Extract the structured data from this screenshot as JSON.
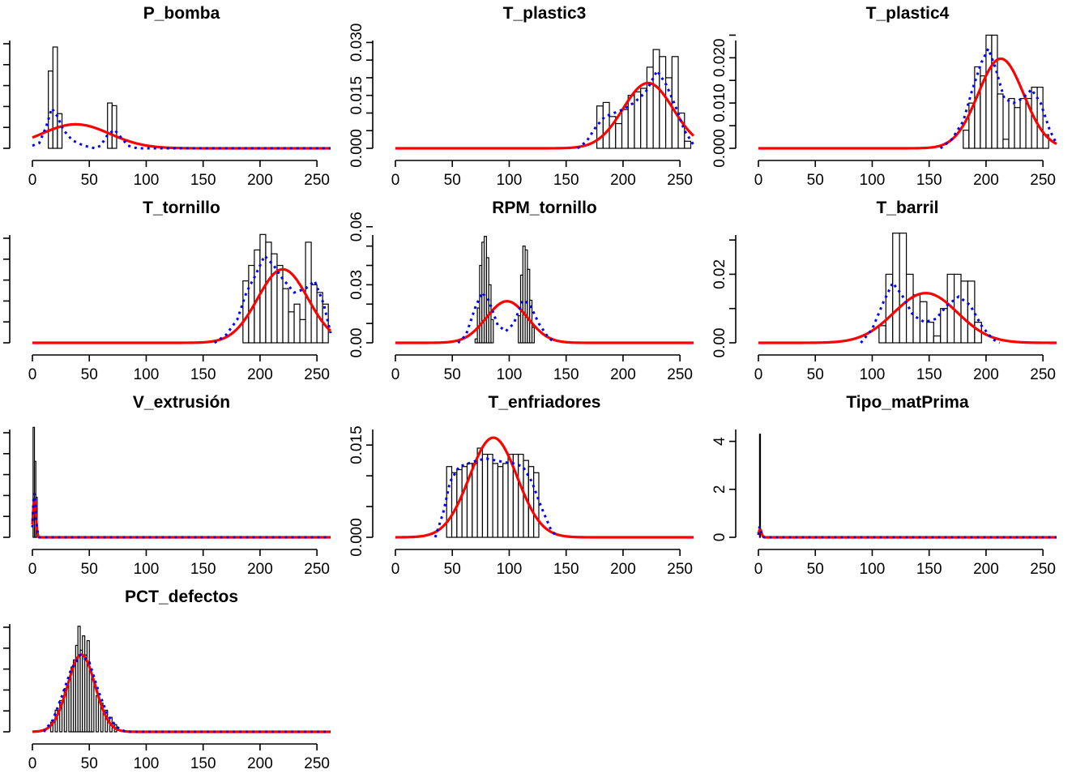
{
  "colors": {
    "bars": "#000000",
    "normal_curve": "#ff0000",
    "kernel_density": "#0000ff"
  },
  "chart_data": [
    {
      "type": "histogram",
      "title": "P_bomba",
      "xlim": [
        0,
        262
      ],
      "ylim": [
        0,
        0.45
      ],
      "xticks": [
        0,
        50,
        100,
        150,
        200,
        250
      ],
      "yticks": [],
      "ytick_labels": [],
      "bar_width": 4,
      "bars": [
        [
          14,
          0.29
        ],
        [
          18,
          0.38
        ],
        [
          22,
          0.13
        ],
        [
          66,
          0.17
        ],
        [
          70,
          0.16
        ]
      ],
      "normal": {
        "mean": 38,
        "sd": 30,
        "peak": 0.09
      },
      "kernel": [
        [
          0,
          0.01
        ],
        [
          6,
          0.02
        ],
        [
          12,
          0.08
        ],
        [
          17,
          0.15
        ],
        [
          22,
          0.12
        ],
        [
          27,
          0.07
        ],
        [
          35,
          0.03
        ],
        [
          45,
          0.01
        ],
        [
          55,
          0.0
        ],
        [
          60,
          0.01
        ],
        [
          66,
          0.05
        ],
        [
          72,
          0.07
        ],
        [
          78,
          0.04
        ],
        [
          84,
          0.01
        ],
        [
          92,
          0.0
        ],
        [
          262,
          0.0
        ]
      ]
    },
    {
      "type": "histogram",
      "title": "T_plastic3",
      "xlim": [
        0,
        262
      ],
      "ylim": [
        0,
        0.034
      ],
      "xticks": [
        0,
        50,
        100,
        150,
        200,
        250
      ],
      "yticks": [
        0,
        0.005,
        0.01,
        0.015,
        0.02,
        0.025,
        0.03
      ],
      "ytick_labels": [
        "0.000",
        "",
        "",
        "0.015",
        "",
        "",
        "0.030"
      ],
      "bar_width": 5.5,
      "bars": [
        [
          177,
          0.012
        ],
        [
          182.5,
          0.013
        ],
        [
          188,
          0.009
        ],
        [
          193.5,
          0.007
        ],
        [
          199,
          0.011
        ],
        [
          204.5,
          0.015
        ],
        [
          210,
          0.016
        ],
        [
          215.5,
          0.017
        ],
        [
          221,
          0.023
        ],
        [
          226.5,
          0.028
        ],
        [
          232,
          0.026
        ],
        [
          237.5,
          0.02
        ],
        [
          243,
          0.026
        ],
        [
          248.5,
          0.01
        ],
        [
          254,
          0.002
        ]
      ],
      "normal": {
        "mean": 222,
        "sd": 22,
        "peak": 0.0185
      },
      "kernel": [
        [
          160,
          0.0
        ],
        [
          168,
          0.002
        ],
        [
          176,
          0.006
        ],
        [
          184,
          0.009
        ],
        [
          192,
          0.01
        ],
        [
          200,
          0.011
        ],
        [
          210,
          0.013
        ],
        [
          220,
          0.016
        ],
        [
          230,
          0.022
        ],
        [
          238,
          0.018
        ],
        [
          246,
          0.012
        ],
        [
          254,
          0.005
        ],
        [
          262,
          0.001
        ]
      ]
    },
    {
      "type": "histogram",
      "title": "T_plastic4",
      "xlim": [
        0,
        262
      ],
      "ylim": [
        0,
        0.0265
      ],
      "xticks": [
        0,
        50,
        100,
        150,
        200,
        250
      ],
      "yticks": [
        0,
        0.005,
        0.01,
        0.015,
        0.02,
        0.025
      ],
      "ytick_labels": [
        "0.000",
        "",
        "0.010",
        "",
        "0.020",
        ""
      ],
      "bar_width": 5,
      "bars": [
        [
          180,
          0.004
        ],
        [
          185,
          0.01
        ],
        [
          190,
          0.018
        ],
        [
          195,
          0.016
        ],
        [
          200,
          0.025
        ],
        [
          205,
          0.025
        ],
        [
          210,
          0.012
        ],
        [
          215,
          0.002
        ],
        [
          220,
          0.011
        ],
        [
          225,
          0.009
        ],
        [
          230,
          0.011
        ],
        [
          235,
          0.011
        ],
        [
          240,
          0.0135
        ],
        [
          245,
          0.0135
        ],
        [
          250,
          0.003
        ]
      ],
      "normal": {
        "mean": 213,
        "sd": 20,
        "peak": 0.0198
      },
      "kernel": [
        [
          160,
          0.0
        ],
        [
          170,
          0.002
        ],
        [
          180,
          0.006
        ],
        [
          188,
          0.013
        ],
        [
          196,
          0.019
        ],
        [
          202,
          0.022
        ],
        [
          208,
          0.018
        ],
        [
          216,
          0.011
        ],
        [
          224,
          0.01
        ],
        [
          232,
          0.011
        ],
        [
          240,
          0.013
        ],
        [
          248,
          0.01
        ],
        [
          256,
          0.004
        ],
        [
          262,
          0.001
        ]
      ]
    },
    {
      "type": "histogram",
      "title": "T_tornillo",
      "xlim": [
        0,
        262
      ],
      "ylim": [
        0,
        0.062
      ],
      "xticks": [
        0,
        50,
        100,
        150,
        200,
        250
      ],
      "yticks": [],
      "ytick_labels": [],
      "bar_width": 5,
      "bars": [
        [
          185,
          0.032
        ],
        [
          190,
          0.04
        ],
        [
          195,
          0.048
        ],
        [
          200,
          0.056
        ],
        [
          205,
          0.052
        ],
        [
          210,
          0.046
        ],
        [
          215,
          0.04
        ],
        [
          220,
          0.028
        ],
        [
          225,
          0.016
        ],
        [
          230,
          0.02
        ],
        [
          235,
          0.012
        ],
        [
          240,
          0.052
        ],
        [
          245,
          0.03
        ],
        [
          250,
          0.026
        ],
        [
          255,
          0.02
        ]
      ],
      "normal": {
        "mean": 220,
        "sd": 22,
        "peak": 0.038
      },
      "kernel": [
        [
          160,
          0.0
        ],
        [
          170,
          0.004
        ],
        [
          180,
          0.012
        ],
        [
          188,
          0.026
        ],
        [
          196,
          0.035
        ],
        [
          204,
          0.045
        ],
        [
          212,
          0.04
        ],
        [
          220,
          0.033
        ],
        [
          230,
          0.026
        ],
        [
          240,
          0.028
        ],
        [
          248,
          0.032
        ],
        [
          256,
          0.02
        ],
        [
          262,
          0.005
        ]
      ]
    },
    {
      "type": "histogram",
      "title": "RPM_tornillo",
      "xlim": [
        0,
        262
      ],
      "ylim": [
        0,
        0.062
      ],
      "xticks": [
        0,
        50,
        100,
        150,
        200,
        250
      ],
      "yticks": [
        0,
        0.01,
        0.02,
        0.03,
        0.04,
        0.05,
        0.06
      ],
      "ytick_labels": [
        "0.00",
        "",
        "",
        "0.03",
        "",
        "",
        "0.06"
      ],
      "bar_width": 2,
      "bars": [
        [
          70,
          0.002
        ],
        [
          72,
          0.018
        ],
        [
          74,
          0.04
        ],
        [
          76,
          0.052
        ],
        [
          78,
          0.055
        ],
        [
          80,
          0.044
        ],
        [
          82,
          0.03
        ],
        [
          84,
          0.012
        ],
        [
          108,
          0.014
        ],
        [
          110,
          0.035
        ],
        [
          112,
          0.05
        ],
        [
          114,
          0.048
        ],
        [
          116,
          0.038
        ],
        [
          118,
          0.022
        ],
        [
          120,
          0.008
        ]
      ],
      "normal": {
        "mean": 98,
        "sd": 18,
        "peak": 0.0215
      },
      "kernel": [
        [
          55,
          0.0
        ],
        [
          62,
          0.004
        ],
        [
          70,
          0.018
        ],
        [
          76,
          0.026
        ],
        [
          82,
          0.022
        ],
        [
          90,
          0.009
        ],
        [
          97,
          0.006
        ],
        [
          104,
          0.01
        ],
        [
          112,
          0.022
        ],
        [
          118,
          0.02
        ],
        [
          126,
          0.01
        ],
        [
          134,
          0.003
        ],
        [
          140,
          0.0
        ]
      ]
    },
    {
      "type": "histogram",
      "title": "T_barril",
      "xlim": [
        0,
        262
      ],
      "ylim": [
        0,
        0.035
      ],
      "xticks": [
        0,
        50,
        100,
        150,
        200,
        250
      ],
      "yticks": [
        0,
        0.01,
        0.02,
        0.03
      ],
      "ytick_labels": [
        "0.00",
        "",
        "0.02",
        ""
      ],
      "bar_width": 6,
      "bars": [
        [
          106,
          0.005
        ],
        [
          112,
          0.02
        ],
        [
          118,
          0.032
        ],
        [
          124,
          0.032
        ],
        [
          130,
          0.02
        ],
        [
          136,
          0.014
        ],
        [
          142,
          0.012
        ],
        [
          148,
          0.006
        ],
        [
          154,
          0.002
        ],
        [
          160,
          0.01
        ],
        [
          166,
          0.02
        ],
        [
          172,
          0.02
        ],
        [
          178,
          0.018
        ],
        [
          184,
          0.018
        ],
        [
          190,
          0.006
        ]
      ],
      "normal": {
        "mean": 147,
        "sd": 28,
        "peak": 0.0145
      },
      "kernel": [
        [
          90,
          0.0
        ],
        [
          100,
          0.004
        ],
        [
          110,
          0.012
        ],
        [
          118,
          0.0175
        ],
        [
          126,
          0.014
        ],
        [
          136,
          0.008
        ],
        [
          146,
          0.006
        ],
        [
          156,
          0.007
        ],
        [
          166,
          0.011
        ],
        [
          176,
          0.0135
        ],
        [
          186,
          0.011
        ],
        [
          196,
          0.005
        ],
        [
          206,
          0.001
        ],
        [
          212,
          0.0
        ]
      ]
    },
    {
      "type": "histogram",
      "title": "V_extrusión",
      "xlim": [
        0,
        262
      ],
      "ylim": [
        0,
        0.6
      ],
      "xticks": [
        0,
        50,
        100,
        150,
        200,
        250
      ],
      "yticks": [],
      "ytick_labels": [],
      "bar_width": 1.2,
      "bars": [
        [
          0.6,
          0.55
        ],
        [
          1.8,
          0.38
        ],
        [
          3,
          0.2
        ]
      ],
      "normal": {
        "mean": 1.8,
        "sd": 1.2,
        "peak": 0.2
      },
      "kernel": [
        [
          0,
          0.05
        ],
        [
          1,
          0.2
        ],
        [
          2,
          0.22
        ],
        [
          3,
          0.12
        ],
        [
          4,
          0.04
        ],
        [
          6,
          0.0
        ],
        [
          262,
          0.0
        ]
      ]
    },
    {
      "type": "histogram",
      "title": "T_enfriadores",
      "xlim": [
        0,
        262
      ],
      "ylim": [
        0,
        0.0195
      ],
      "xticks": [
        0,
        50,
        100,
        150,
        200,
        250
      ],
      "yticks": [
        0,
        0.005,
        0.01,
        0.015
      ],
      "ytick_labels": [
        "0.000",
        "",
        "",
        "0.015"
      ],
      "bar_width": 4.5,
      "bars": [
        [
          45,
          0.0115
        ],
        [
          49.5,
          0.0105
        ],
        [
          54,
          0.011
        ],
        [
          58.5,
          0.0115
        ],
        [
          63,
          0.012
        ],
        [
          67.5,
          0.012
        ],
        [
          72,
          0.0145
        ],
        [
          76.5,
          0.0135
        ],
        [
          81,
          0.0135
        ],
        [
          85.5,
          0.012
        ],
        [
          90,
          0.0115
        ],
        [
          94.5,
          0.012
        ],
        [
          99,
          0.0135
        ],
        [
          103.5,
          0.0135
        ],
        [
          108,
          0.0135
        ],
        [
          112.5,
          0.0125
        ],
        [
          117,
          0.0115
        ],
        [
          121.5,
          0.0105
        ]
      ],
      "normal": {
        "mean": 86,
        "sd": 21,
        "peak": 0.0162
      },
      "kernel": [
        [
          35,
          0.0
        ],
        [
          42,
          0.004
        ],
        [
          48,
          0.009
        ],
        [
          56,
          0.0115
        ],
        [
          64,
          0.012
        ],
        [
          72,
          0.0125
        ],
        [
          80,
          0.0128
        ],
        [
          88,
          0.0125
        ],
        [
          96,
          0.0122
        ],
        [
          104,
          0.012
        ],
        [
          112,
          0.0115
        ],
        [
          120,
          0.009
        ],
        [
          128,
          0.005
        ],
        [
          136,
          0.0015
        ],
        [
          142,
          0.0
        ]
      ]
    },
    {
      "type": "histogram",
      "title": "Tipo_matPrima",
      "xlim": [
        0,
        262
      ],
      "ylim": [
        0,
        5
      ],
      "xticks": [
        0,
        50,
        100,
        150,
        200,
        250
      ],
      "yticks": [
        0,
        2,
        4
      ],
      "ytick_labels": [
        "0",
        "2",
        "4"
      ],
      "bar_width": 0.8,
      "bars": [
        [
          1,
          4.3
        ]
      ],
      "normal": {
        "mean": 1.5,
        "sd": 1.2,
        "peak": 0.33
      },
      "kernel": [
        [
          0,
          0.1
        ],
        [
          1,
          0.45
        ],
        [
          2,
          0.28
        ],
        [
          3,
          0.06
        ],
        [
          5,
          0.0
        ],
        [
          262,
          0.0
        ]
      ]
    },
    {
      "type": "histogram",
      "title": "PCT_defectos",
      "xlim": [
        0,
        262
      ],
      "ylim": [
        0,
        0.05
      ],
      "xticks": [
        0,
        50,
        100,
        150,
        200,
        250
      ],
      "yticks": [],
      "ytick_labels": [],
      "bar_width": 2,
      "bars": [
        [
          16,
          0.004
        ],
        [
          20,
          0.009
        ],
        [
          24,
          0.013
        ],
        [
          28,
          0.018
        ],
        [
          32,
          0.022
        ],
        [
          34,
          0.027
        ],
        [
          36,
          0.03
        ],
        [
          38,
          0.036
        ],
        [
          40,
          0.044
        ],
        [
          42,
          0.034
        ],
        [
          44,
          0.04
        ],
        [
          46,
          0.032
        ],
        [
          48,
          0.038
        ],
        [
          50,
          0.026
        ],
        [
          52,
          0.022
        ],
        [
          56,
          0.015
        ],
        [
          60,
          0.012
        ],
        [
          64,
          0.009
        ],
        [
          68,
          0.006
        ],
        [
          72,
          0.003
        ]
      ],
      "normal": {
        "mean": 43,
        "sd": 12,
        "peak": 0.0322
      },
      "kernel": [
        [
          10,
          0.0
        ],
        [
          18,
          0.005
        ],
        [
          26,
          0.015
        ],
        [
          34,
          0.026
        ],
        [
          42,
          0.032
        ],
        [
          50,
          0.029
        ],
        [
          58,
          0.017
        ],
        [
          66,
          0.007
        ],
        [
          74,
          0.002
        ],
        [
          82,
          0.0
        ],
        [
          262,
          0.0
        ]
      ]
    }
  ]
}
